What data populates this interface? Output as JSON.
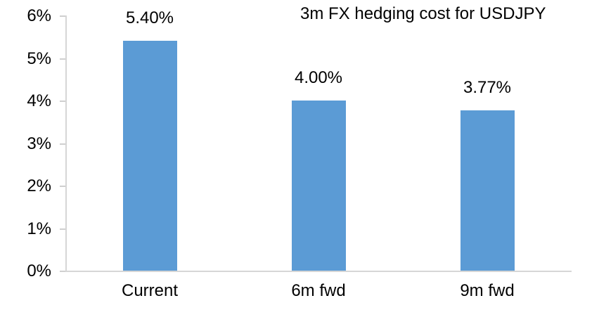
{
  "chart_data": {
    "type": "bar",
    "title": "3m FX hedging cost for USDJPY",
    "categories": [
      "Current",
      "6m fwd",
      "9m fwd"
    ],
    "values": [
      5.4,
      4.0,
      3.77
    ],
    "value_labels": [
      "5.40%",
      "4.00%",
      "3.77%"
    ],
    "xlabel": "",
    "ylabel": "",
    "ylim": [
      0,
      6
    ],
    "ytick_values": [
      0,
      1,
      2,
      3,
      4,
      5,
      6
    ],
    "ytick_labels": [
      "0%",
      "1%",
      "2%",
      "3%",
      "4%",
      "5%",
      "6%"
    ],
    "grid": false,
    "legend": false,
    "bar_color": "#5b9bd5",
    "axis_color": "#d6d6d6",
    "text_color": "#000000"
  }
}
